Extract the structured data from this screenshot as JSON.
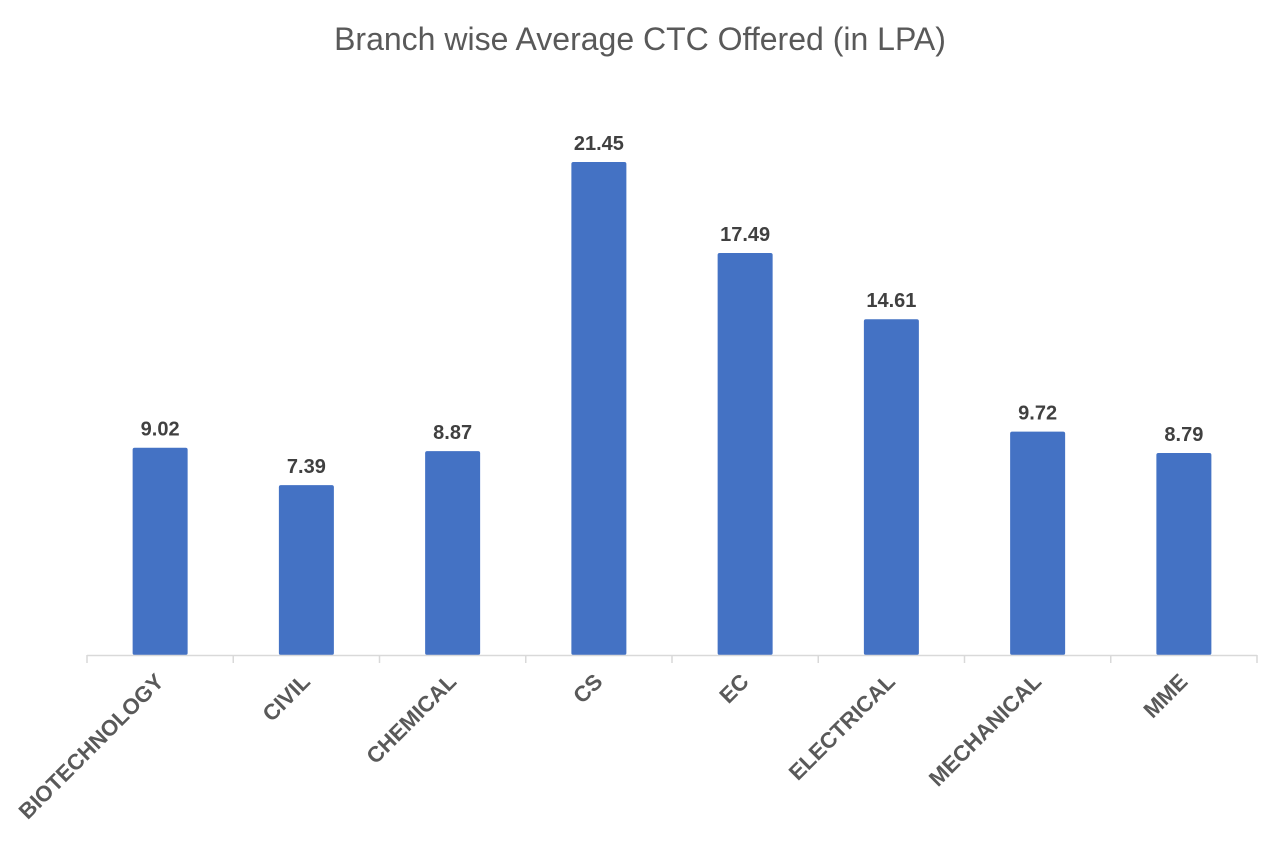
{
  "chart_data": {
    "type": "bar",
    "title": "Branch wise Average CTC Offered (in LPA)",
    "xlabel": "",
    "ylabel": "",
    "categories": [
      "BIOTECHNOLOGY",
      "CIVIL",
      "CHEMICAL",
      "CS",
      "EC",
      "ELECTRICAL",
      "MECHANICAL",
      "MME"
    ],
    "values": [
      9.02,
      7.39,
      8.87,
      21.45,
      17.49,
      14.61,
      9.72,
      8.79
    ],
    "data_labels": [
      "9.02",
      "7.39",
      "8.87",
      "21.45",
      "17.49",
      "14.61",
      "9.72",
      "8.79"
    ],
    "ylim": [
      0,
      21.45
    ],
    "grid": false,
    "legend": "none",
    "colors": {
      "bar": "#4472C4",
      "axis": "#D9D9D9",
      "title": "#595959",
      "data_label": "#404040",
      "tick_label": "#595959"
    }
  }
}
